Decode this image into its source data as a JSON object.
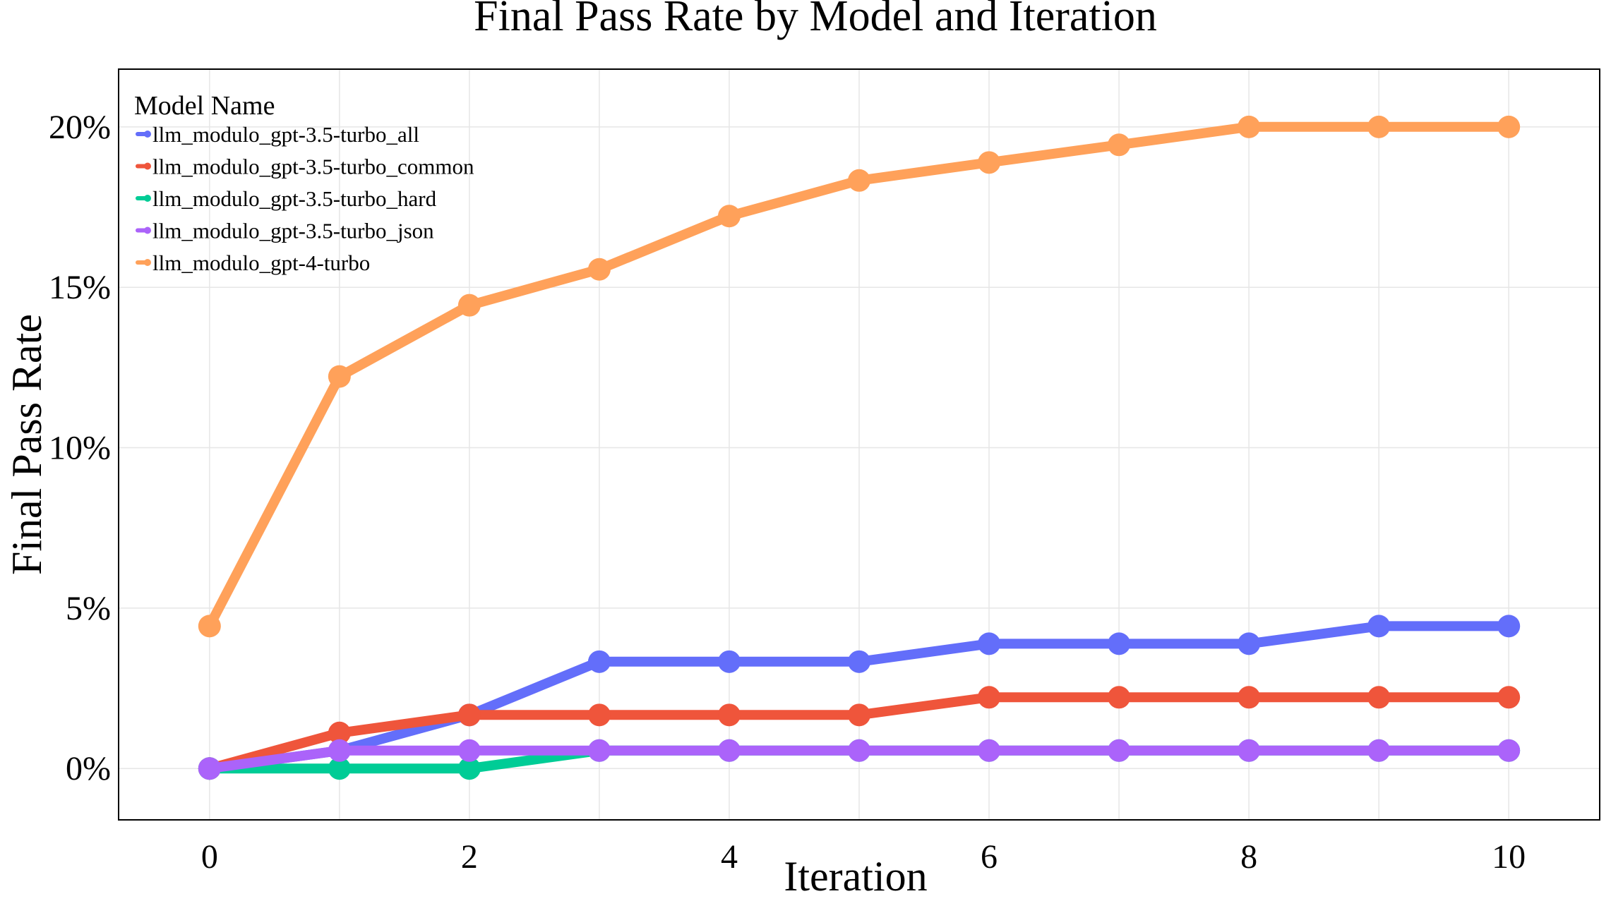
{
  "chart_data": {
    "type": "line",
    "title": "Final Pass Rate by Model and Iteration",
    "xlabel": "Iteration",
    "ylabel": "Final Pass Rate",
    "x": [
      0,
      1,
      2,
      3,
      4,
      5,
      6,
      7,
      8,
      9,
      10
    ],
    "xlim": [
      -0.7,
      10.7
    ],
    "ylim": [
      -1.6,
      21.8
    ],
    "x_ticks": [
      0,
      2,
      4,
      6,
      8,
      10
    ],
    "y_ticks": [
      0,
      5,
      10,
      15,
      20
    ],
    "x_tick_labels": [
      "0",
      "2",
      "4",
      "6",
      "8",
      "10"
    ],
    "y_tick_labels": [
      "0%",
      "5%",
      "10%",
      "15%",
      "20%"
    ],
    "grid": true,
    "legend": {
      "title": "Model Name",
      "placement": "top-left"
    },
    "series": [
      {
        "name": "llm_modulo_gpt-3.5-turbo_all",
        "color": "#636efa",
        "values": [
          0,
          0.56,
          1.67,
          3.33,
          3.33,
          3.33,
          3.89,
          3.89,
          3.89,
          4.44,
          4.44
        ]
      },
      {
        "name": "llm_modulo_gpt-3.5-turbo_common",
        "color": "#ef553b",
        "values": [
          0,
          1.11,
          1.67,
          1.67,
          1.67,
          1.67,
          2.22,
          2.22,
          2.22,
          2.22,
          2.22
        ]
      },
      {
        "name": "llm_modulo_gpt-3.5-turbo_hard",
        "color": "#00cc96",
        "values": [
          0,
          0,
          0,
          0.56,
          0.56,
          0.56,
          0.56,
          0.56,
          0.56,
          0.56,
          0.56
        ]
      },
      {
        "name": "llm_modulo_gpt-3.5-turbo_json",
        "color": "#ab63fa",
        "values": [
          0,
          0.56,
          0.56,
          0.56,
          0.56,
          0.56,
          0.56,
          0.56,
          0.56,
          0.56,
          0.56
        ]
      },
      {
        "name": "llm_modulo_gpt-4-turbo",
        "color": "#ffa15a",
        "values": [
          4.44,
          12.22,
          14.44,
          15.56,
          17.22,
          18.33,
          18.89,
          19.44,
          20,
          20,
          20
        ]
      }
    ]
  }
}
